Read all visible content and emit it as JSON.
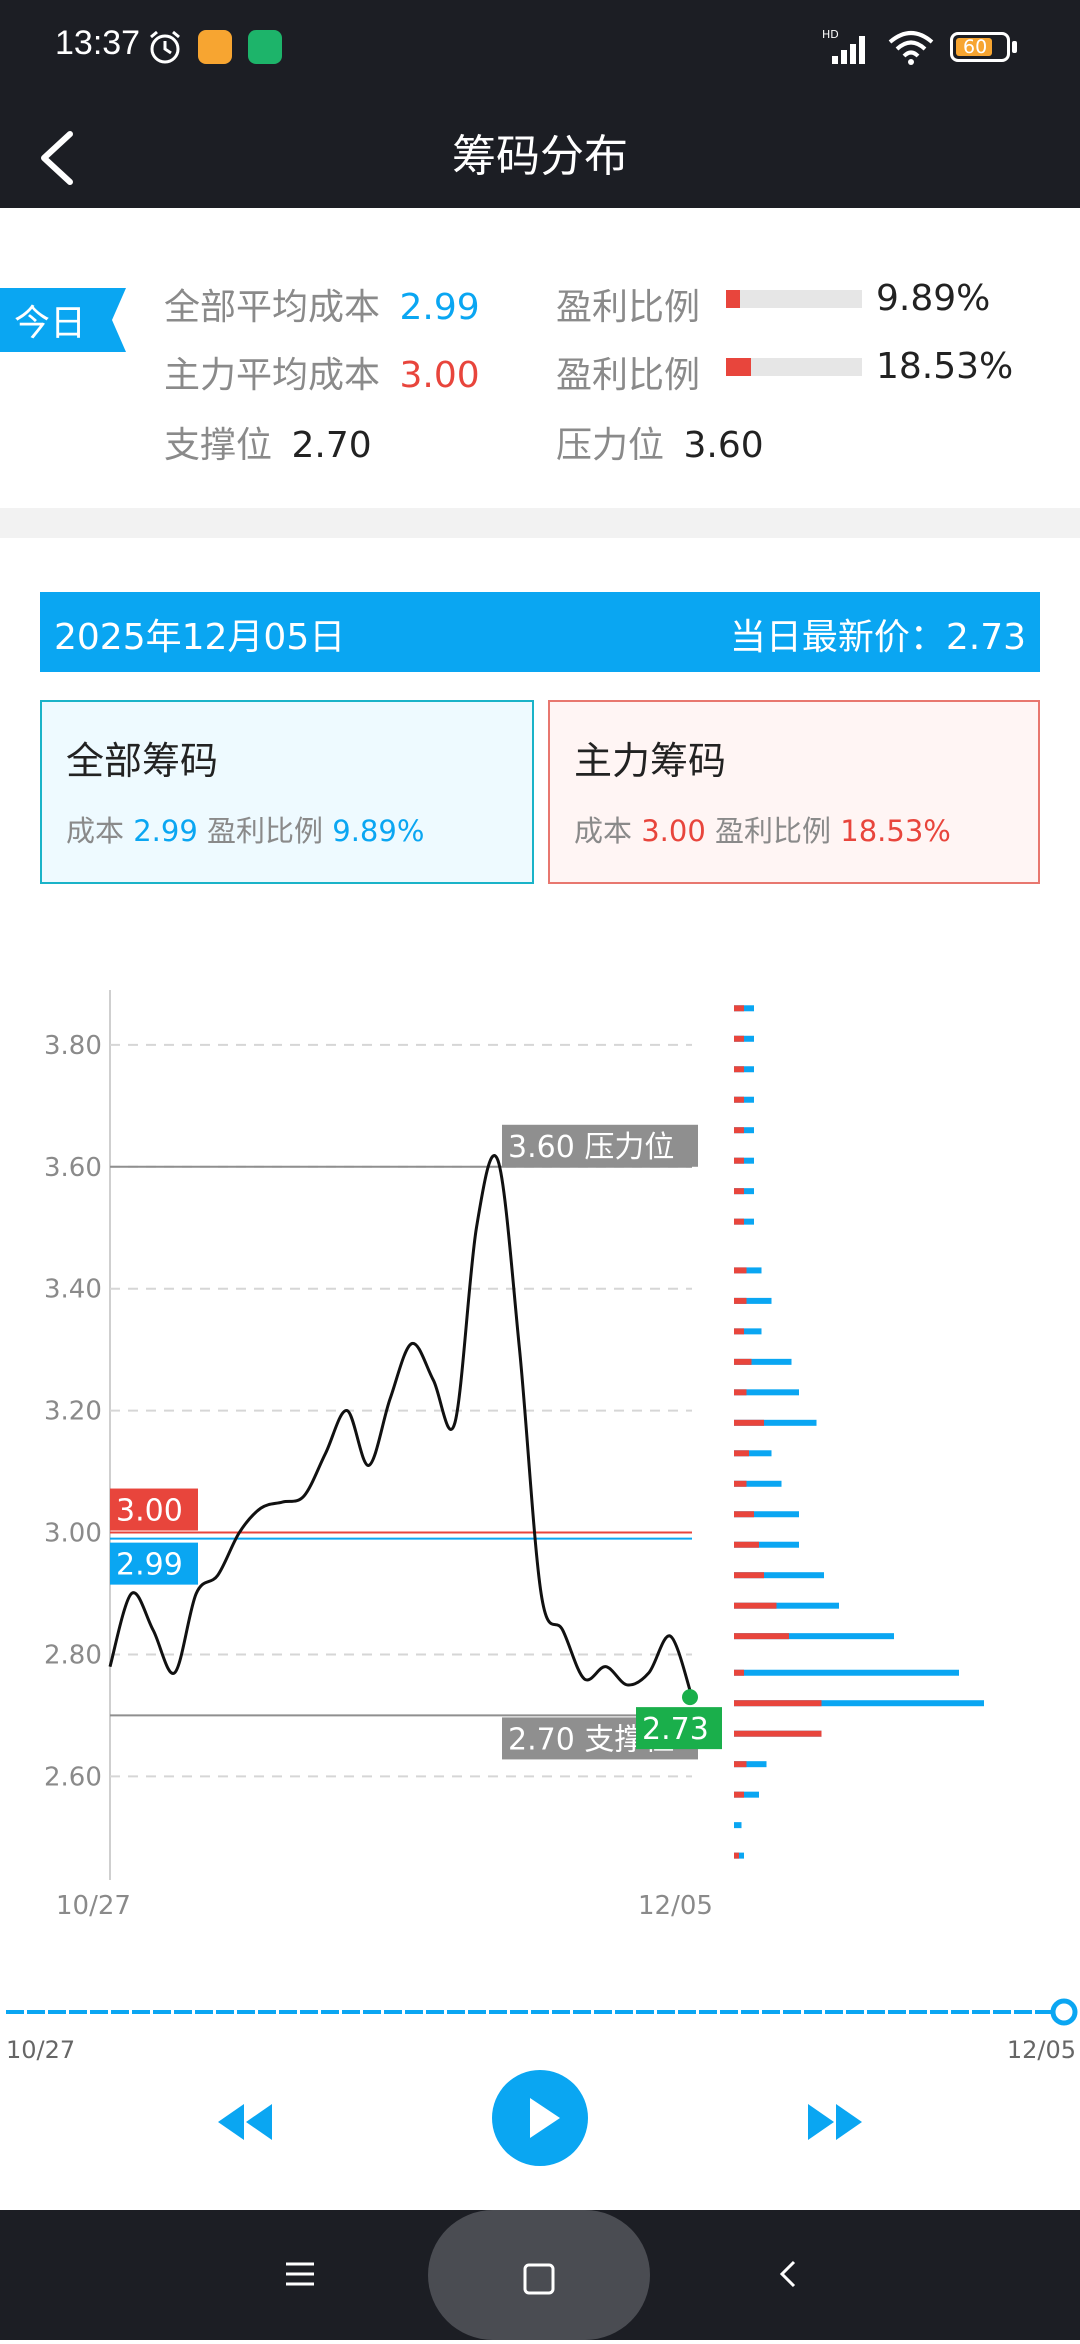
{
  "status": {
    "time": "13:37",
    "battery": "60"
  },
  "header": {
    "title": "筹码分布"
  },
  "summary": {
    "today_tag": "今日",
    "rows": [
      {
        "label": "全部平均成本",
        "value": "2.99",
        "ratio_label": "盈利比例",
        "ratio": "9.89%"
      },
      {
        "label": "主力平均成本",
        "value": "3.00",
        "ratio_label": "盈利比例",
        "ratio": "18.53%"
      }
    ],
    "support_label": "支撑位",
    "support": "2.70",
    "pressure_label": "压力位",
    "pressure": "3.60"
  },
  "banner": {
    "date": "2025年12月05日",
    "latest_label": "当日最新价：",
    "latest": "2.73"
  },
  "cards": {
    "all": {
      "title": "全部筹码",
      "cost_label": "成本",
      "cost": "2.99",
      "ratio_label": "盈利比例",
      "ratio": "9.89%"
    },
    "main": {
      "title": "主力筹码",
      "cost_label": "成本",
      "cost": "3.00",
      "ratio_label": "盈利比例",
      "ratio": "18.53%"
    }
  },
  "colors": {
    "blue": "#0aa6f2",
    "red": "#e8453c",
    "green": "#1aaf4b",
    "gray_label": "#8f8f8f",
    "dark": "#1c1e24"
  },
  "chart_data": {
    "type": "line",
    "x_labels": [
      "10/27",
      "12/05"
    ],
    "ylim": [
      2.43,
      3.89
    ],
    "yticks": [
      "3.80",
      "3.60",
      "3.40",
      "3.20",
      "3.00",
      "2.80",
      "2.60"
    ],
    "grid": true,
    "series": [
      {
        "values": [
          2.78,
          2.9,
          2.84,
          2.77,
          2.9,
          2.93,
          3.0,
          3.04,
          3.05,
          3.06,
          3.13,
          3.2,
          3.11,
          3.22,
          3.31,
          3.25,
          3.18,
          3.5,
          3.61,
          3.3,
          2.9,
          2.84,
          2.76,
          2.78,
          2.75,
          2.77,
          2.83,
          2.73
        ]
      }
    ],
    "reference_lines": [
      {
        "value": 3.6,
        "label": "3.60 压力位"
      },
      {
        "value": 3.0,
        "label": "3.00"
      },
      {
        "value": 2.99,
        "label": "2.99"
      },
      {
        "value": 2.7,
        "label": "2.70 支撑位"
      }
    ],
    "latest": {
      "value": 2.73,
      "label": "2.73"
    },
    "distribution": [
      {
        "price": 3.86,
        "all": 0.08,
        "main": 0.04
      },
      {
        "price": 3.81,
        "all": 0.08,
        "main": 0.04
      },
      {
        "price": 3.76,
        "all": 0.08,
        "main": 0.04
      },
      {
        "price": 3.71,
        "all": 0.08,
        "main": 0.04
      },
      {
        "price": 3.66,
        "all": 0.08,
        "main": 0.04
      },
      {
        "price": 3.61,
        "all": 0.08,
        "main": 0.04
      },
      {
        "price": 3.56,
        "all": 0.08,
        "main": 0.04
      },
      {
        "price": 3.51,
        "all": 0.08,
        "main": 0.04
      },
      {
        "price": 3.43,
        "all": 0.11,
        "main": 0.05
      },
      {
        "price": 3.38,
        "all": 0.15,
        "main": 0.05
      },
      {
        "price": 3.33,
        "all": 0.11,
        "main": 0.04
      },
      {
        "price": 3.28,
        "all": 0.23,
        "main": 0.07
      },
      {
        "price": 3.23,
        "all": 0.26,
        "main": 0.05
      },
      {
        "price": 3.18,
        "all": 0.33,
        "main": 0.12
      },
      {
        "price": 3.13,
        "all": 0.15,
        "main": 0.06
      },
      {
        "price": 3.08,
        "all": 0.19,
        "main": 0.05
      },
      {
        "price": 3.03,
        "all": 0.26,
        "main": 0.08
      },
      {
        "price": 2.98,
        "all": 0.26,
        "main": 0.1
      },
      {
        "price": 2.93,
        "all": 0.36,
        "main": 0.12
      },
      {
        "price": 2.88,
        "all": 0.42,
        "main": 0.17
      },
      {
        "price": 2.83,
        "all": 0.64,
        "main": 0.22
      },
      {
        "price": 2.77,
        "all": 0.9,
        "main": 0.04
      },
      {
        "price": 2.72,
        "all": 1.0,
        "main": 0.35
      },
      {
        "price": 2.67,
        "all": 0.35,
        "main": 0.35
      },
      {
        "price": 2.62,
        "all": 0.13,
        "main": 0.05
      },
      {
        "price": 2.57,
        "all": 0.1,
        "main": 0.04
      },
      {
        "price": 2.52,
        "all": 0.03,
        "main": 0.0
      },
      {
        "price": 2.47,
        "all": 0.04,
        "main": 0.02
      }
    ]
  },
  "slider": {
    "start": "10/27",
    "end": "12/05",
    "position": 1.0
  }
}
